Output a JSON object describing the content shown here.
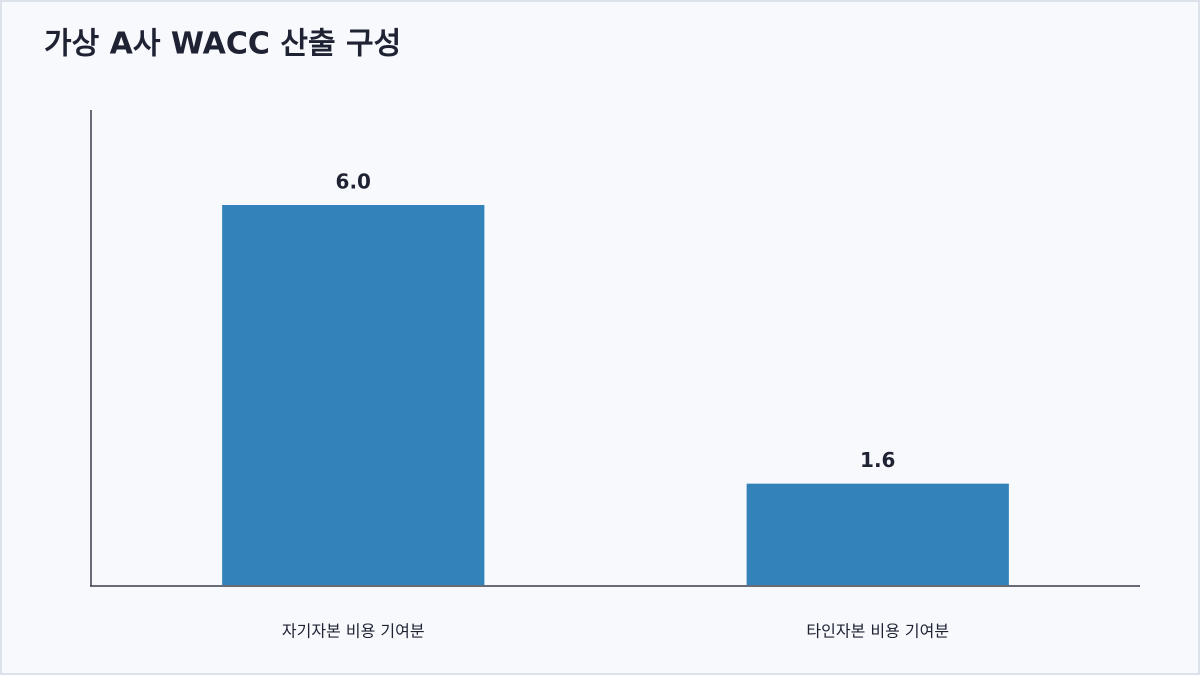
{
  "chart_data": {
    "type": "bar",
    "title": "가상 A사 WACC 산출 구성",
    "categories": [
      "자기자본 비용 기여분",
      "타인자본 비용 기여분"
    ],
    "values": [
      6.0,
      1.6
    ],
    "value_labels": [
      "6.0",
      "1.6"
    ],
    "color": "#3382b9",
    "ylim": [
      0,
      7.5
    ]
  }
}
